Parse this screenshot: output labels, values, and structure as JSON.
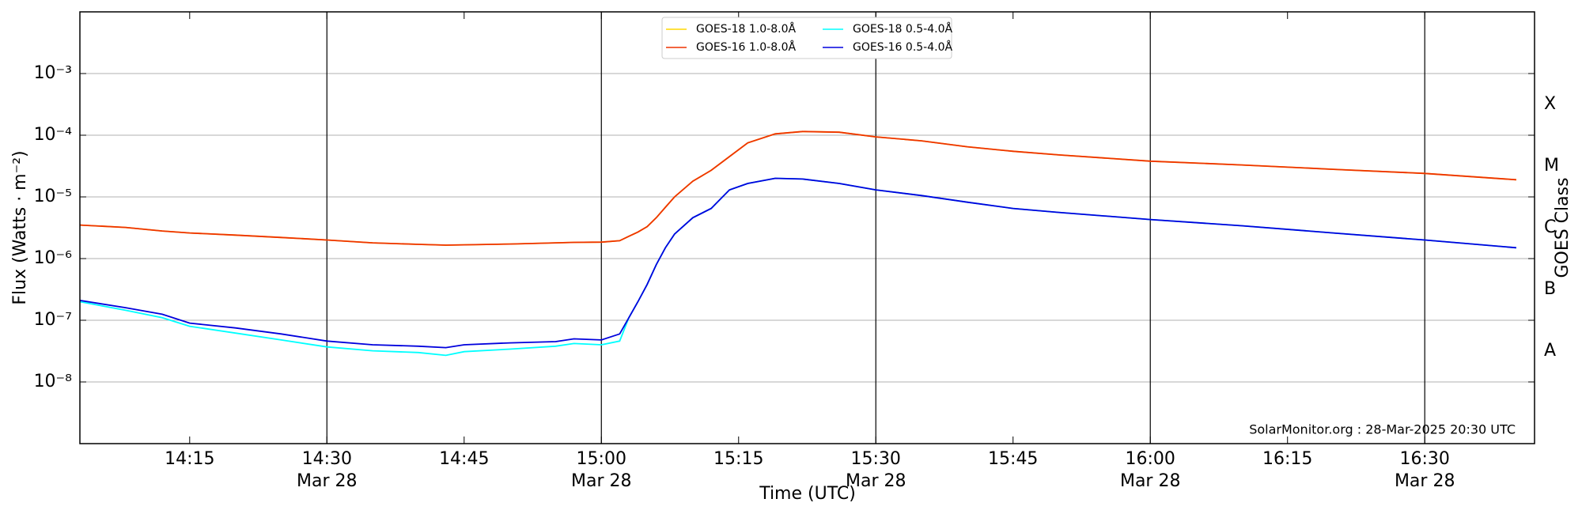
{
  "chart_data": {
    "type": "line",
    "xlabel": "Time (UTC)",
    "ylabel": "Flux (Watts · m⁻²)",
    "y2label": "GOES Class",
    "annotation": "SolarMonitor.org : 28-Mar-2025 20:30 UTC",
    "log_y": true,
    "grid": true,
    "legend": "upper center",
    "x": [
      "14:03",
      "14:08",
      "14:12",
      "14:15",
      "14:20",
      "14:25",
      "14:30",
      "14:35",
      "14:40",
      "14:43",
      "14:45",
      "14:50",
      "14:55",
      "14:57",
      "15:00",
      "15:02",
      "15:03",
      "15:04",
      "15:05",
      "15:06",
      "15:07",
      "15:08",
      "15:10",
      "15:12",
      "15:14",
      "15:16",
      "15:19",
      "15:22",
      "15:26",
      "15:30",
      "15:35",
      "15:40",
      "15:45",
      "15:50",
      "16:00",
      "16:10",
      "16:20",
      "16:30",
      "16:40"
    ],
    "xlim": [
      "14:03",
      "16:42"
    ],
    "xticks": [
      "14:15",
      {
        "value": "14:30",
        "label": [
          "14:30",
          "Mar 28"
        ]
      },
      "14:45",
      {
        "value": "15:00",
        "label": [
          "15:00",
          "Mar 28"
        ]
      },
      "15:15",
      {
        "value": "15:30",
        "label": [
          "15:30",
          "Mar 28"
        ]
      },
      "15:45",
      {
        "value": "16:00",
        "label": [
          "16:00",
          "Mar 28"
        ]
      },
      "16:15",
      {
        "value": "16:30",
        "label": [
          "16:30",
          "Mar 28"
        ]
      }
    ],
    "vlines": [
      "14:30",
      "15:00",
      "15:30",
      "16:00",
      "16:30"
    ],
    "ylim": [
      1e-09,
      0.01
    ],
    "yticks": [
      {
        "value": 1e-08,
        "label": "10⁻⁸"
      },
      {
        "value": 1e-07,
        "label": "10⁻⁷"
      },
      {
        "value": 1e-06,
        "label": "10⁻⁶"
      },
      {
        "value": 1e-05,
        "label": "10⁻⁵"
      },
      {
        "value": 0.0001,
        "label": "10⁻⁴"
      },
      {
        "value": 0.001,
        "label": "10⁻³"
      }
    ],
    "y2lim": [
      1e-09,
      0.01
    ],
    "y2ticks": [
      {
        "value": 3.16e-08,
        "label": "A"
      },
      {
        "value": 3.16e-07,
        "label": "B"
      },
      {
        "value": 3.16e-06,
        "label": "C"
      },
      {
        "value": 3.16e-05,
        "label": "M"
      },
      {
        "value": 0.000316,
        "label": "X"
      }
    ],
    "series": [
      {
        "name": "GOES-18 1.0-8.0Å",
        "color": "#ffd700",
        "values": [
          3.5e-06,
          3.2e-06,
          2.8e-06,
          2.6e-06,
          2.4e-06,
          2.2e-06,
          2e-06,
          1.8e-06,
          1.7e-06,
          1.65e-06,
          1.67e-06,
          1.72e-06,
          1.8e-06,
          1.83e-06,
          1.85e-06,
          1.95e-06,
          2.3e-06,
          2.7e-06,
          3.3e-06,
          4.6e-06,
          6.8e-06,
          1e-05,
          1.8e-05,
          2.7e-05,
          4.5e-05,
          7.5e-05,
          0.000105,
          0.000115,
          0.000112,
          9.4e-05,
          8.1e-05,
          6.5e-05,
          5.5e-05,
          4.8e-05,
          3.8e-05,
          3.3e-05,
          2.8e-05,
          2.4e-05,
          1.9e-05
        ]
      },
      {
        "name": "GOES-16 1.0-8.0Å",
        "color": "#ee3300",
        "values": [
          3.5e-06,
          3.2e-06,
          2.8e-06,
          2.6e-06,
          2.4e-06,
          2.2e-06,
          2e-06,
          1.8e-06,
          1.7e-06,
          1.65e-06,
          1.67e-06,
          1.72e-06,
          1.8e-06,
          1.83e-06,
          1.85e-06,
          1.95e-06,
          2.3e-06,
          2.7e-06,
          3.3e-06,
          4.6e-06,
          6.8e-06,
          1e-05,
          1.8e-05,
          2.7e-05,
          4.5e-05,
          7.5e-05,
          0.000105,
          0.000115,
          0.000112,
          9.4e-05,
          8.1e-05,
          6.5e-05,
          5.5e-05,
          4.8e-05,
          3.8e-05,
          3.3e-05,
          2.8e-05,
          2.4e-05,
          1.9e-05
        ]
      },
      {
        "name": "GOES-18 0.5-4.0Å",
        "color": "#00ffff",
        "values": [
          2e-07,
          1.45e-07,
          1.1e-07,
          8e-08,
          6.2e-08,
          4.8e-08,
          3.7e-08,
          3.2e-08,
          3e-08,
          2.7e-08,
          3.1e-08,
          3.4e-08,
          3.8e-08,
          4.2e-08,
          4e-08,
          4.6e-08,
          1.1e-07,
          2e-07,
          3.8e-07,
          8e-07,
          1.5e-06,
          2.5e-06,
          4.6e-06,
          6.5e-06,
          1.3e-05,
          1.65e-05,
          2e-05,
          1.95e-05,
          1.65e-05,
          1.3e-05,
          1.05e-05,
          8.2e-06,
          6.5e-06,
          5.6e-06,
          4.3e-06,
          3.4e-06,
          2.6e-06,
          2e-06,
          1.5e-06
        ]
      },
      {
        "name": "GOES-16 0.5-4.0Å",
        "color": "#0000dd",
        "values": [
          2.1e-07,
          1.6e-07,
          1.25e-07,
          9e-08,
          7.5e-08,
          6e-08,
          4.6e-08,
          4e-08,
          3.8e-08,
          3.6e-08,
          4e-08,
          4.3e-08,
          4.5e-08,
          5e-08,
          4.8e-08,
          6e-08,
          1.1e-07,
          2e-07,
          3.8e-07,
          8e-07,
          1.5e-06,
          2.5e-06,
          4.6e-06,
          6.5e-06,
          1.3e-05,
          1.65e-05,
          2e-05,
          1.95e-05,
          1.65e-05,
          1.3e-05,
          1.05e-05,
          8.2e-06,
          6.5e-06,
          5.6e-06,
          4.3e-06,
          3.4e-06,
          2.6e-06,
          2e-06,
          1.5e-06
        ]
      }
    ]
  }
}
